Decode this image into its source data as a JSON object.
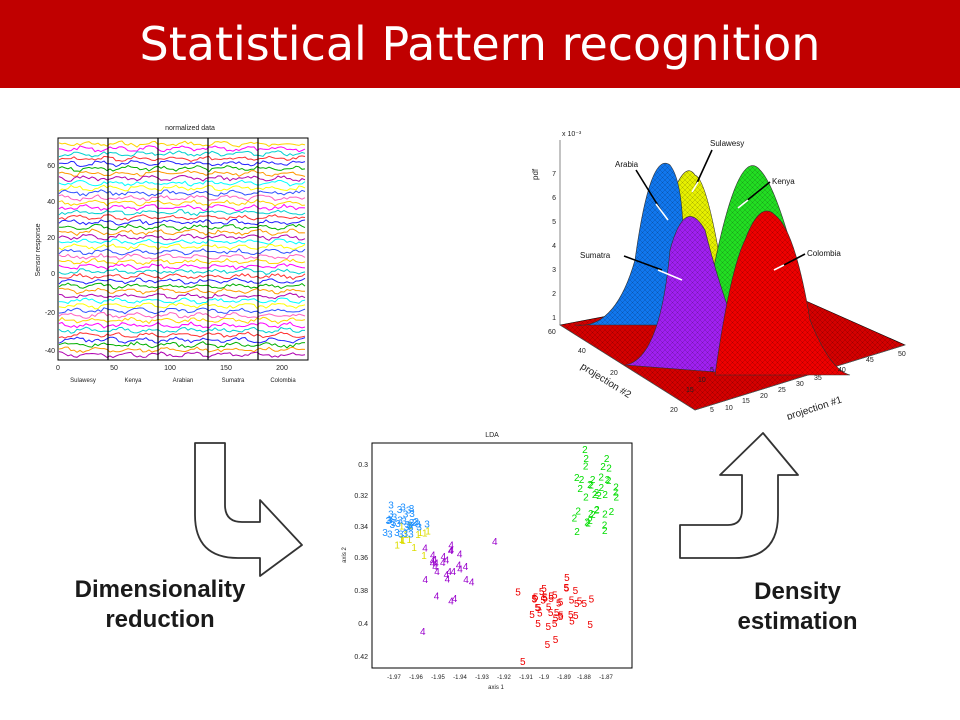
{
  "header": {
    "title": "Statistical Pattern recognition"
  },
  "colors": {
    "title_bar": "#c00000",
    "title_text": "#ffffff"
  },
  "panels": {
    "normalized": {
      "title": "normalized data",
      "ylabel": "Sensor response",
      "yticks": [
        "60",
        "40",
        "20",
        "0",
        "-20",
        "-40"
      ],
      "xticks": [
        "0",
        "50",
        "100",
        "150",
        "200"
      ],
      "groups": [
        "Sulawesy",
        "Kenya",
        "Arabian",
        "Sumatra",
        "Colombia"
      ]
    },
    "surface": {
      "scale": "x 10⁻³",
      "zlabel": "pdf",
      "zticks": [
        "7",
        "6",
        "5",
        "4",
        "3",
        "2",
        "1"
      ],
      "ylabel": "projection #2",
      "yticks": [
        "60",
        "40",
        "20",
        "20",
        "15",
        "10",
        "5"
      ],
      "xlabel": "projection #1",
      "xticks": [
        "5",
        "10",
        "15",
        "20",
        "25",
        "30",
        "35",
        "40",
        "45",
        "50"
      ],
      "labels": [
        "Arabia",
        "Sulawesy",
        "Kenya",
        "Sumatra",
        "Colombia"
      ]
    },
    "lda": {
      "title": "LDA",
      "xlabel": "axis 1",
      "ylabel": "axis 2",
      "xticks": [
        "-1.97",
        "-1.96",
        "-1.95",
        "-1.94",
        "-1.93",
        "-1.92",
        "-1.91",
        "-1.9",
        "-1.89",
        "-1.88",
        "-1.87"
      ],
      "yticks": [
        "0.3",
        "0.32",
        "0.34",
        "0.36",
        "0.38",
        "0.4",
        "0.42"
      ]
    }
  },
  "steps": {
    "dimensionality": [
      "Dimensionality",
      "reduction"
    ],
    "density": [
      "Density",
      "estimation"
    ]
  }
}
